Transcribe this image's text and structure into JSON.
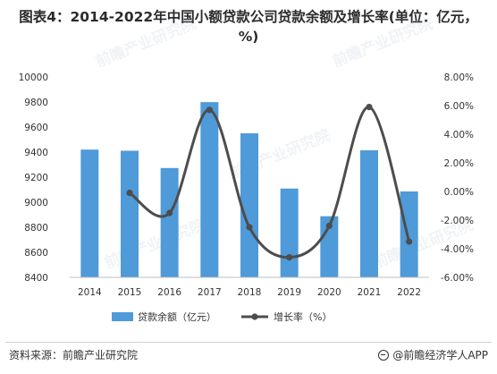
{
  "title": "图表4：2014-2022年中国小额贷款公司贷款余额及增长率(单位：亿元，%)",
  "source": "资料来源：前瞻产业研究院",
  "brand": "@前瞻经济学人APP",
  "watermark": "前瞻产业研究院",
  "colors": {
    "bar": "#4f9ad8",
    "line": "#4d4d4d",
    "axis_text": "#333333",
    "axis_line": "#bfbfbf"
  },
  "chart_data": {
    "type": "bar+line",
    "categories": [
      "2014",
      "2015",
      "2016",
      "2017",
      "2018",
      "2019",
      "2020",
      "2021",
      "2022"
    ],
    "series": [
      {
        "name": "贷款余额（亿元）",
        "type": "bar",
        "axis": "left",
        "values": [
          9420,
          9411,
          9273,
          9799,
          9550,
          9109,
          8888,
          9415,
          9086
        ]
      },
      {
        "name": "增长率（%）",
        "type": "line",
        "axis": "right",
        "values": [
          null,
          -0.1,
          -1.5,
          5.7,
          -2.5,
          -4.6,
          -2.4,
          5.9,
          -3.5
        ]
      }
    ],
    "y_left": {
      "min": 8400,
      "max": 10000,
      "ticks": [
        "8400",
        "8600",
        "8800",
        "9000",
        "9200",
        "9400",
        "9600",
        "9800",
        "10000"
      ]
    },
    "y_right": {
      "min": -6,
      "max": 8,
      "ticks": [
        "-6.00%",
        "-4.00%",
        "-2.00%",
        "0.00%",
        "2.00%",
        "4.00%",
        "6.00%",
        "8.00%"
      ]
    },
    "legend_position": "bottom"
  }
}
